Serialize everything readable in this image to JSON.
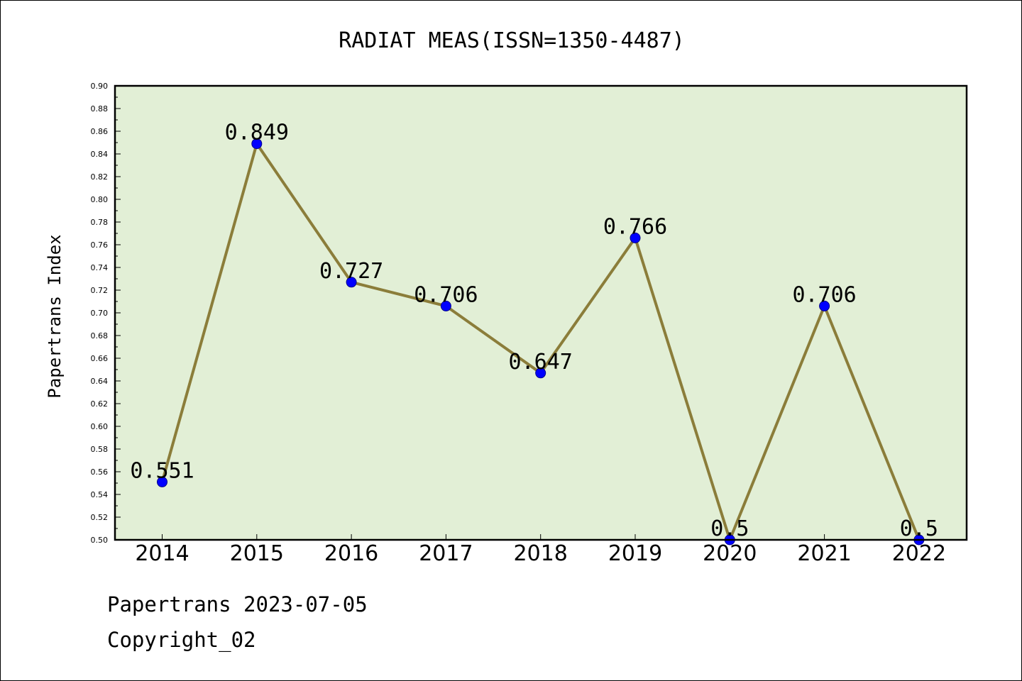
{
  "chart_data": {
    "type": "line",
    "title": "RADIAT MEAS(ISSN=1350-4487)",
    "xlabel": "",
    "ylabel": "Papertrans Index",
    "categories": [
      "2014",
      "2015",
      "2016",
      "2017",
      "2018",
      "2019",
      "2020",
      "2021",
      "2022"
    ],
    "series": [
      {
        "values": [
          0.551,
          0.849,
          0.727,
          0.706,
          0.647,
          0.766,
          0.5,
          0.706,
          0.5
        ],
        "labels": [
          "0.551",
          "0.849",
          "0.727",
          "0.706",
          "0.647",
          "0.766",
          "0.5",
          "0.706",
          "0.5"
        ]
      }
    ],
    "ylim": [
      0.5,
      0.9
    ],
    "yticks": [
      "0.50",
      "0.52",
      "0.54",
      "0.56",
      "0.58",
      "0.60",
      "0.62",
      "0.64",
      "0.66",
      "0.68",
      "0.70",
      "0.72",
      "0.74",
      "0.76",
      "0.78",
      "0.80",
      "0.82",
      "0.84",
      "0.86",
      "0.88",
      "0.90"
    ],
    "grid": false,
    "colors": {
      "plot_background": "#e2efd6",
      "line": "#8b7d3a",
      "marker": "#0000ff"
    }
  },
  "footer": {
    "line1": "Papertrans 2023-07-05",
    "line2": "Copyright_02"
  }
}
